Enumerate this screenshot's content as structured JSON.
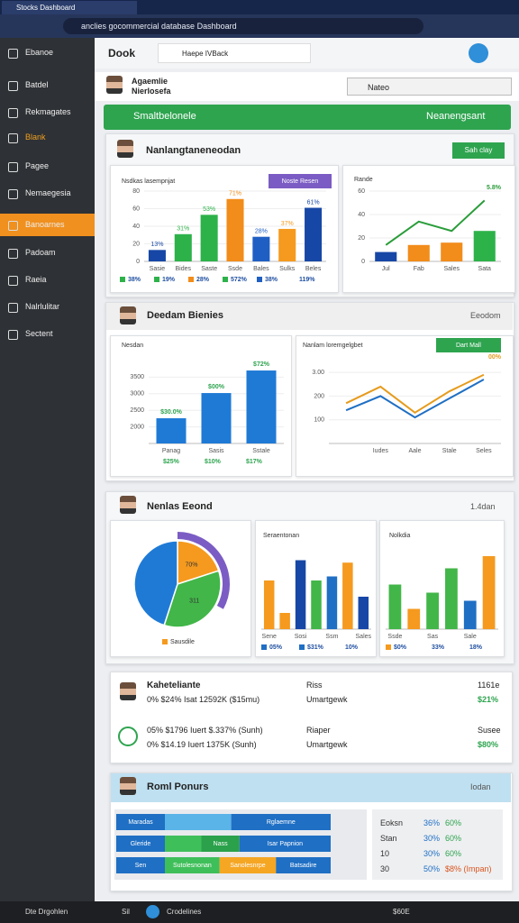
{
  "browser": {
    "tab": "Stocks Dashboard",
    "url": "anclies gocommercial database Dashboard"
  },
  "sidebar": {
    "items": [
      "Ebanoe",
      "Batdel",
      "Rekmagates",
      "Blank",
      "Pagee",
      "Nemaegesia",
      "Banoarnes",
      "Padoam",
      "Raeia",
      "Nalrlulitar",
      "Sectent"
    ],
    "active": 6
  },
  "topbar": {
    "title": "Dook",
    "tab": "Haepe IVBack"
  },
  "profile": {
    "name": "Agaemlie",
    "role": "Nierlosefa",
    "search": "Nateo"
  },
  "banner": {
    "left": "Smaltbelonele",
    "right": "Neanengsant"
  },
  "section1": {
    "title": "Nanlangtaneneodan",
    "button": "Sah clay",
    "bar_chart": {
      "type": "bar",
      "title": "Nsdkas lasempnjat",
      "button": "Noste Resen",
      "categories": [
        "Sasie",
        "Bides",
        "Saste",
        "Ssde",
        "Bales",
        "Sulks",
        "Beles"
      ],
      "values": [
        13,
        31,
        53,
        71,
        28,
        37,
        61
      ],
      "value_labels": [
        "13%",
        "31%",
        "53%",
        "71%",
        "28%",
        "37%",
        "61%"
      ],
      "colors": [
        "#1747a6",
        "#2db24a",
        "#2db24a",
        "#f28c1a",
        "#1f5fc4",
        "#f59a1e",
        "#1747a6"
      ],
      "ylim": [
        0,
        80
      ],
      "yticks": [
        0,
        20,
        40,
        60,
        80
      ],
      "legend": [
        "38%",
        "19%",
        "28%",
        "572%",
        "38%",
        "119%"
      ],
      "legend_colors": [
        "#2db24a",
        "#2db24a",
        "#f28c1a",
        "#2db24a",
        "#1f5fc4",
        "#ffffff"
      ]
    },
    "combo_chart": {
      "type": "bar",
      "title": "Rande",
      "categories": [
        "Jul",
        "Fab",
        "Sales",
        "Sata"
      ],
      "values": [
        8,
        14,
        16,
        26
      ],
      "colors": [
        "#1747a6",
        "#f28c1a",
        "#f28c1a",
        "#2db24a"
      ],
      "series": [
        {
          "color": "#2a9d3a",
          "values": [
            14,
            34,
            26,
            52
          ]
        }
      ],
      "ylim": [
        0,
        60
      ],
      "yticks": [
        0,
        20,
        40,
        60
      ],
      "annotation": "5.8%"
    }
  },
  "section2": {
    "title": "Deedam Bienies",
    "link": "Eeodom",
    "bar_chart": {
      "type": "bar",
      "title": "Nesdan",
      "categories": [
        "Panag",
        "Sasis",
        "Sstale"
      ],
      "values": [
        2260,
        3020,
        3700
      ],
      "colors": [
        "#1f7ad6",
        "#1f7ad6",
        "#1f7ad6"
      ],
      "ylim": [
        1500,
        4000
      ],
      "yticks": [
        2000,
        2500,
        3000,
        3500
      ],
      "annotations": [
        "$30.0%",
        "$00%",
        "$72%"
      ],
      "legend": [
        "$25%",
        "$10%",
        "$17%"
      ]
    },
    "line_chart": {
      "type": "line",
      "title": "Nanlam loremgelgbet",
      "button": "Dart Mall",
      "categories": [
        null,
        "Iudes",
        "Aale",
        "Stale",
        "Seles"
      ],
      "series": [
        {
          "color": "#e69b1c",
          "values": [
            1.7,
            2.4,
            1.3,
            2.2,
            2.9
          ]
        },
        {
          "color": "#1f6fc4",
          "values": [
            1.4,
            2.0,
            1.1,
            1.9,
            2.7
          ]
        }
      ],
      "ylim": [
        0,
        3.5
      ],
      "yticks": [
        {
          "value": 1,
          "label": "100"
        },
        {
          "value": 2,
          "label": "200"
        },
        {
          "value": 3,
          "label": "3.00"
        }
      ],
      "annotation": "00%"
    }
  },
  "section3": {
    "title": "Nenlas Eeond",
    "link": "1.4dan",
    "pie": {
      "type": "pie",
      "values": [
        20,
        35,
        45
      ],
      "colors": [
        "#f59a1e",
        "#42b649",
        "#1f7ad6"
      ],
      "annotations": [
        "70%",
        "311"
      ],
      "legend": "Sausdile"
    },
    "bar_chart_a": {
      "type": "bar",
      "title": "Seraentonan",
      "categories": [
        "Sene",
        null,
        "Sosi",
        null,
        "Ssm",
        null,
        "Sales"
      ],
      "values": [
        60,
        20,
        85,
        60,
        65,
        82,
        40
      ],
      "colors": [
        "#f59a1e",
        "#f59a1e",
        "#1747a6",
        "#42b649",
        "#1f6fc4",
        "#f59a1e",
        "#1747a6"
      ],
      "ylim": [
        0,
        100
      ],
      "legend": [
        "05%",
        "$31%",
        "10%"
      ],
      "legend_colors": [
        "#1f6fc4",
        "#1f6fc4",
        "#ffffff"
      ]
    },
    "bar_chart_b": {
      "type": "bar",
      "title": "Nolkdia",
      "categories": [
        "Ssde",
        null,
        "Sas",
        null,
        "Sale",
        null
      ],
      "values": [
        55,
        25,
        45,
        75,
        35,
        90
      ],
      "colors": [
        "#42b649",
        "#f59a1e",
        "#42b649",
        "#42b649",
        "#1f6fc4",
        "#f59a1e"
      ],
      "ylim": [
        0,
        100
      ],
      "legend": [
        "$0%",
        "33%",
        "18%"
      ],
      "legend_colors": [
        "#f59a1e",
        "#ffffff",
        "#ffffff"
      ]
    }
  },
  "section4": {
    "rows": [
      {
        "title": "Kaheteliante",
        "line": "0% $24% Isat 12592K ($15mu)",
        "mid": "Riss",
        "mid2": "Umartgewk",
        "right": "1161e",
        "right2": "$21%"
      },
      {
        "title": "05% $1796 Iuert $.337% (Sunh)",
        "line": "0% $14.19 Iuert 1375K (Sunh)",
        "mid": "Riaper",
        "mid2": "Umartgewk",
        "right": "Susee",
        "right2": "$80%"
      }
    ]
  },
  "section5": {
    "title": "Roml Ponurs",
    "link": "Iodan",
    "bars": [
      {
        "label": "Maradas",
        "segments": [
          {
            "value": 40,
            "color": "#5ab4e8"
          },
          {
            "value": 60,
            "color": "#1f6fc4",
            "label": "Rglaemne"
          }
        ]
      },
      {
        "label": "Gleride",
        "segments": [
          {
            "value": 22,
            "color": "#3fbf5a"
          },
          {
            "value": 23,
            "color": "#2aa14a",
            "label": "Nass"
          },
          {
            "value": 55,
            "color": "#1f6fc4",
            "label": "Isar Papnion"
          }
        ]
      },
      {
        "label": "Sen",
        "segments": [
          {
            "value": 33,
            "color": "#3fbf5a",
            "label": "Sutolesnonan"
          },
          {
            "value": 34,
            "color": "#f5a623",
            "label": "Sanolesnrpe"
          },
          {
            "value": 33,
            "color": "#1f6fc4",
            "label": "Batsadire"
          }
        ]
      }
    ],
    "table": [
      [
        "Eoksn",
        "36%",
        "60%"
      ],
      [
        "Stan",
        "30%",
        "60%"
      ],
      [
        "10",
        "30%",
        "60%"
      ],
      [
        "30",
        "50%",
        "$8% (Impan)"
      ]
    ]
  },
  "taskbar": {
    "left": "Dte Drgohlen",
    "mid": "Sil",
    "app": "Crodelines",
    "time": "$60E"
  }
}
